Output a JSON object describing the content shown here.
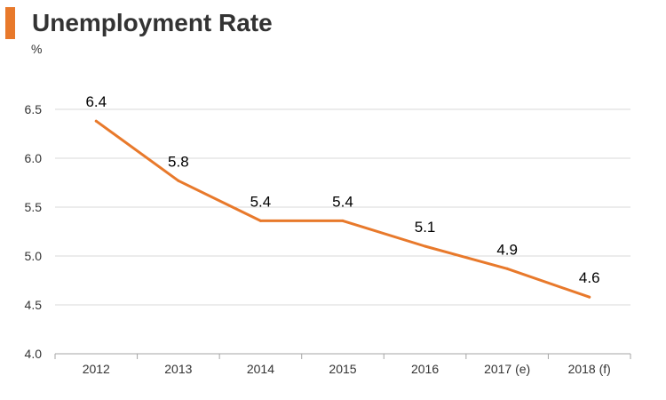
{
  "header": {
    "title": "Unemployment Rate"
  },
  "chart_data": {
    "type": "line",
    "title": "Unemployment Rate",
    "ylabel": "%",
    "xlabel": "",
    "categories": [
      "2012",
      "2013",
      "2014",
      "2015",
      "2016",
      "2017 (e)",
      "2018 (f)"
    ],
    "series": [
      {
        "values": [
          6.38,
          5.77,
          5.36,
          5.36,
          5.1,
          4.87,
          4.58
        ],
        "labels": [
          "6.4",
          "5.8",
          "5.4",
          "5.4",
          "5.1",
          "4.9",
          "4.6"
        ],
        "color": "#e8792b"
      }
    ],
    "yticks": [
      "4.0",
      "4.5",
      "5.0",
      "5.5",
      "6.0",
      "6.5"
    ],
    "ylim": [
      4.0,
      6.5
    ],
    "grid": true,
    "legend": "none",
    "colors": {
      "accent": "#e8792b",
      "grid": "#d9d9d9",
      "axis": "#a6a6a6"
    }
  }
}
